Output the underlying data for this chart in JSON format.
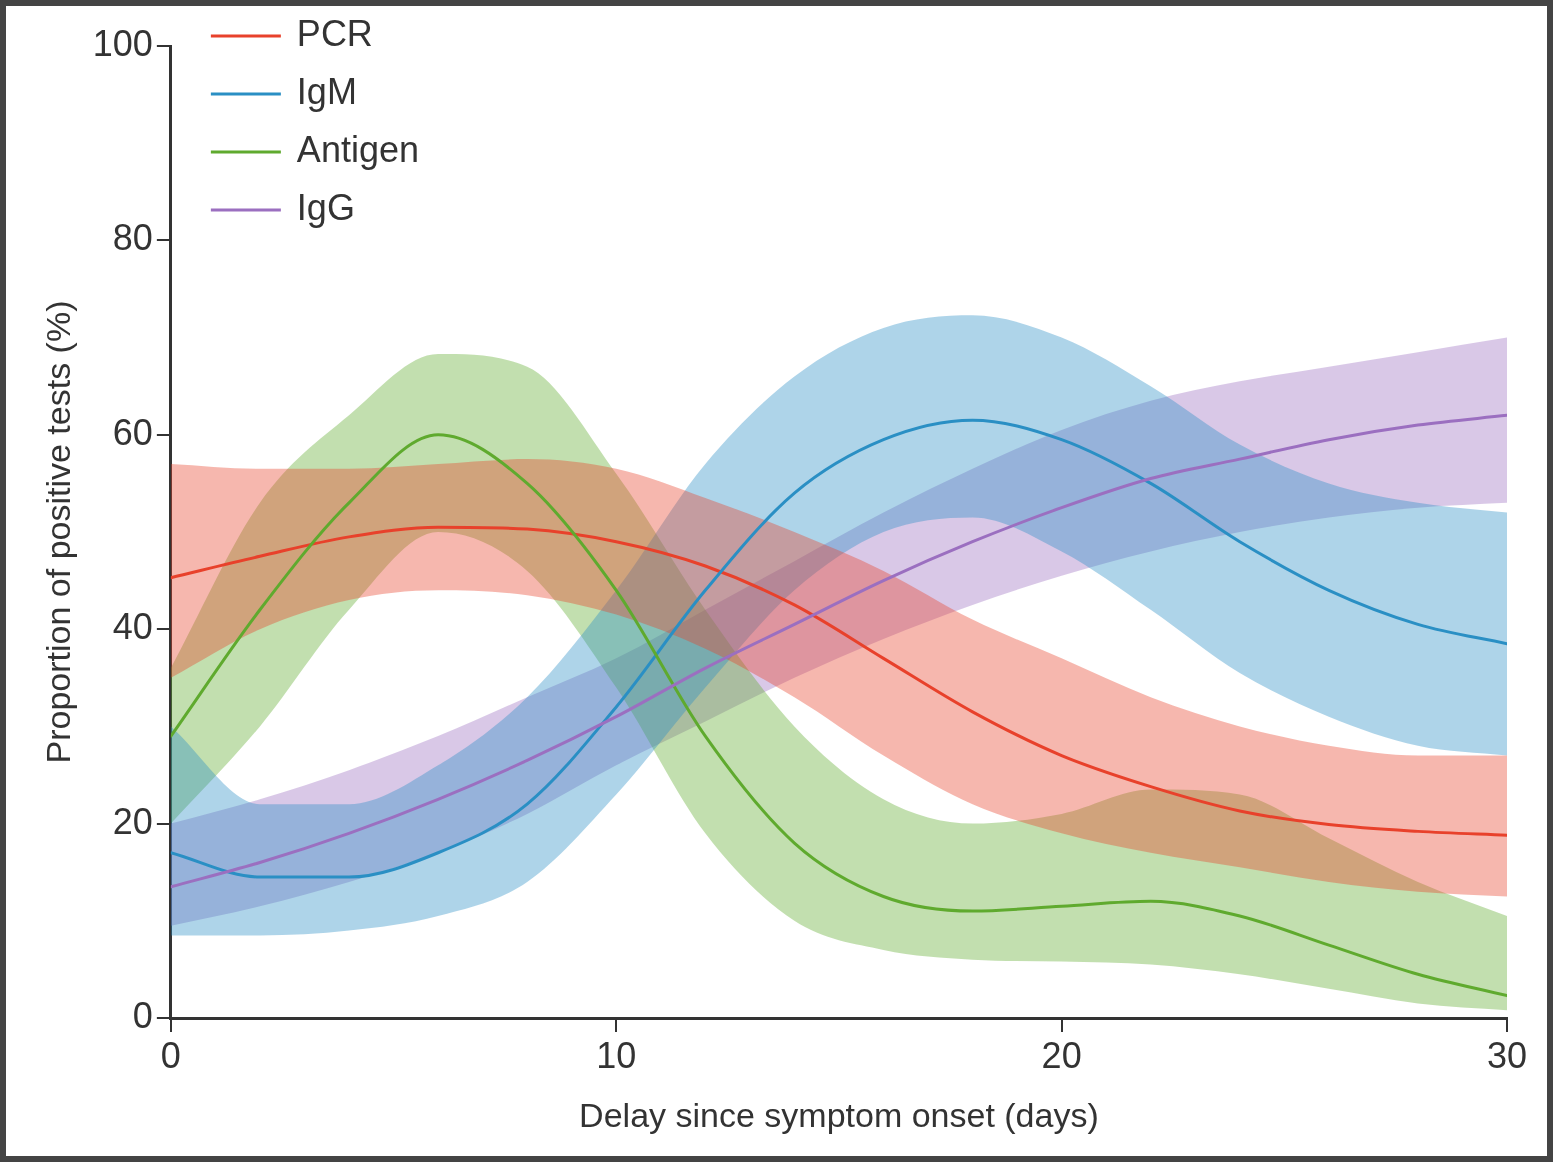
{
  "chart_data": {
    "type": "line",
    "xlabel": "Delay since symptom onset (days)",
    "ylabel": "Proportion of positive tests (%)",
    "x": [
      0,
      2,
      4,
      6,
      8,
      10,
      12,
      14,
      16,
      18,
      20,
      22,
      24,
      26,
      28,
      30
    ],
    "xlim": [
      0,
      30
    ],
    "xticks": [
      0,
      10,
      20,
      30
    ],
    "ylim": [
      0,
      100
    ],
    "yticks": [
      0,
      20,
      40,
      60,
      80,
      100
    ],
    "grid": false,
    "legend": "top left",
    "marker": "none",
    "line_style": "solid",
    "series": [
      {
        "name": "PCR",
        "color": "#e8412b",
        "values": [
          45.3,
          47.5,
          49.5,
          50.5,
          50.3,
          49,
          46.5,
          42.5,
          37,
          31.5,
          27,
          23.8,
          21.3,
          19.9,
          19.2,
          18.8
        ],
        "lower": [
          35,
          40,
          43,
          44,
          43.5,
          41.5,
          38,
          33,
          27,
          22,
          19,
          17,
          15.5,
          14,
          13,
          12.5
        ],
        "upper": [
          57,
          56.5,
          56.5,
          57,
          57.5,
          56.5,
          53.5,
          50,
          46,
          41,
          37,
          33,
          30,
          28,
          27,
          27
        ]
      },
      {
        "name": "IgM",
        "color": "#2a8fc4",
        "values": [
          17,
          14.5,
          14.5,
          17,
          22,
          32,
          44,
          54,
          59.5,
          61.5,
          59.5,
          55,
          49,
          44,
          40.5,
          38.5
        ],
        "lower": [
          8.5,
          8.5,
          9,
          10.5,
          14,
          23,
          34,
          44,
          50,
          51.5,
          48,
          42,
          35.5,
          31,
          28,
          27
        ],
        "upper": [
          30,
          22,
          22,
          26,
          33,
          44,
          57,
          66,
          71,
          72.3,
          70,
          65,
          59,
          55,
          53,
          52
        ]
      },
      {
        "name": "Antigen",
        "color": "#5faa2e",
        "values": [
          29,
          42,
          53,
          60,
          55,
          44,
          29,
          18,
          12.5,
          11,
          11.5,
          12,
          10.5,
          7.5,
          4.5,
          2.3
        ],
        "lower": [
          20,
          30,
          42,
          50,
          46,
          34,
          19,
          10,
          7,
          6,
          5.8,
          5.5,
          4.5,
          3,
          1.5,
          0.8
        ],
        "upper": [
          36,
          53,
          62,
          68.3,
          67,
          56,
          42,
          30,
          22.5,
          20,
          21,
          23.5,
          23,
          18.5,
          14,
          10.5
        ]
      },
      {
        "name": "IgG",
        "color": "#9b6fc0",
        "values": [
          13.5,
          16,
          19,
          22.5,
          26.5,
          31,
          36,
          40.5,
          45,
          49,
          52.5,
          55.5,
          57.5,
          59.5,
          61,
          62
        ],
        "lower": [
          9.5,
          11.5,
          14,
          17,
          21,
          26,
          30.5,
          35,
          39,
          42.5,
          45.5,
          48,
          50,
          51.5,
          52.5,
          53
        ],
        "upper": [
          20,
          22.5,
          25.5,
          29,
          33,
          37,
          42,
          47,
          52,
          56.5,
          60.5,
          63.5,
          65.5,
          67,
          68.5,
          70
        ]
      }
    ]
  }
}
